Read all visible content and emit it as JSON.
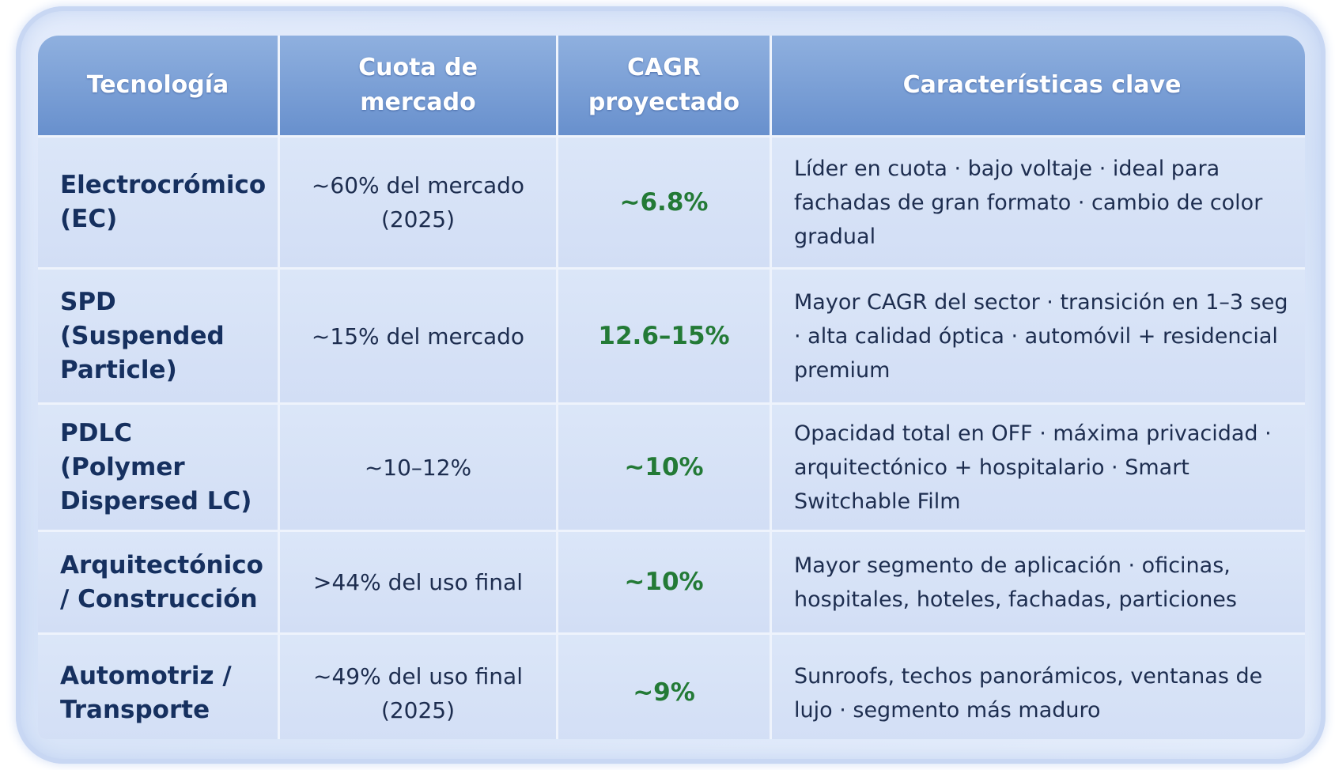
{
  "table": {
    "headers": [
      "Tecnología",
      "Cuota de mercado",
      "CAGR proyectado",
      "Características clave"
    ],
    "rows": [
      [
        "Electrocrómico (EC)",
        "~60% del mercado (2025)",
        "~6.8%",
        "Líder en cuota · bajo voltaje · ideal para fachadas de gran formato · cambio de color gradual"
      ],
      [
        "SPD (Suspended Particle)",
        "~15% del mercado",
        "12.6–15%",
        "Mayor CAGR del sector · transición en 1–3 seg · alta calidad óptica · automóvil + residencial premium"
      ],
      [
        "PDLC (Polymer Dispersed LC)",
        "~10–12%",
        "~10%",
        "Opacidad total en OFF · máxima privacidad · arquitectónico + hospitalario · Smart Switchable Film"
      ],
      [
        "Arquitectónico / Construcción",
        ">44% del uso final",
        "~10%",
        "Mayor segmento de aplicación · oficinas, hospitales, hoteles, fachadas, particiones"
      ],
      [
        "Automotriz / Transporte",
        "~49% del uso final (2025)",
        "~9%",
        "Sunroofs, techos panorámicos, ventanas de lujo · segmento más maduro"
      ]
    ]
  }
}
